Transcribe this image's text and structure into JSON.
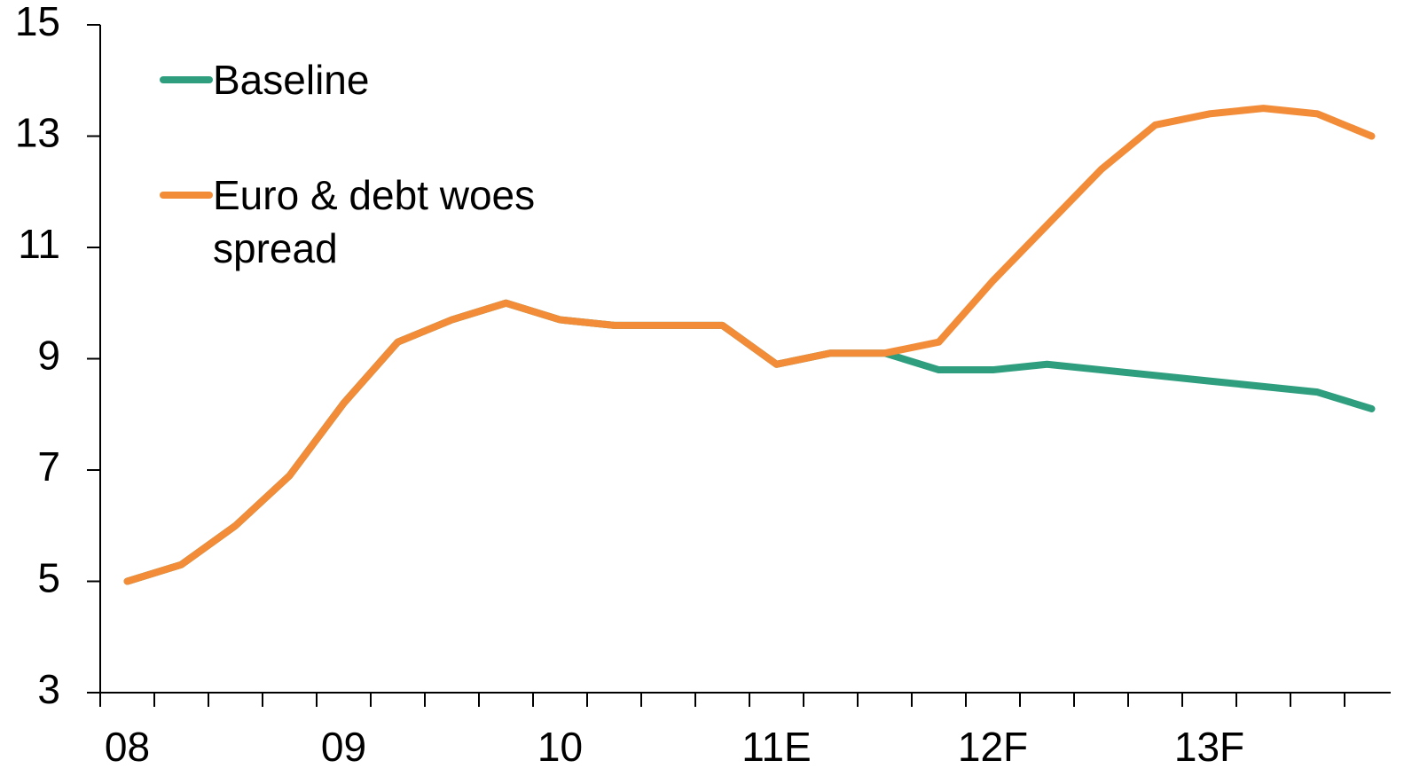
{
  "chart_data": {
    "type": "line",
    "categories": [
      "08",
      null,
      null,
      null,
      "09",
      null,
      null,
      null,
      "10",
      null,
      null,
      null,
      "11E",
      null,
      null,
      null,
      "12F",
      null,
      null,
      null,
      "13F",
      null,
      null,
      null
    ],
    "series": [
      {
        "name": "Baseline",
        "color": "#2e9e7f",
        "values": [
          5.0,
          5.3,
          6.0,
          6.9,
          8.2,
          9.3,
          9.7,
          10.0,
          9.7,
          9.6,
          9.6,
          9.6,
          8.9,
          9.1,
          9.1,
          8.8,
          8.8,
          8.9,
          8.8,
          8.7,
          8.6,
          8.5,
          8.4,
          8.1
        ]
      },
      {
        "name": "Euro & debt woes spread",
        "color": "#f28c38",
        "values": [
          5.0,
          5.3,
          6.0,
          6.9,
          8.2,
          9.3,
          9.7,
          10.0,
          9.7,
          9.6,
          9.6,
          9.6,
          8.9,
          9.1,
          9.1,
          9.3,
          10.4,
          11.4,
          12.4,
          13.2,
          13.4,
          13.5,
          13.4,
          13.0
        ]
      }
    ],
    "ylim": [
      3,
      15
    ],
    "yticks": [
      3,
      5,
      7,
      9,
      11,
      13,
      15
    ]
  }
}
